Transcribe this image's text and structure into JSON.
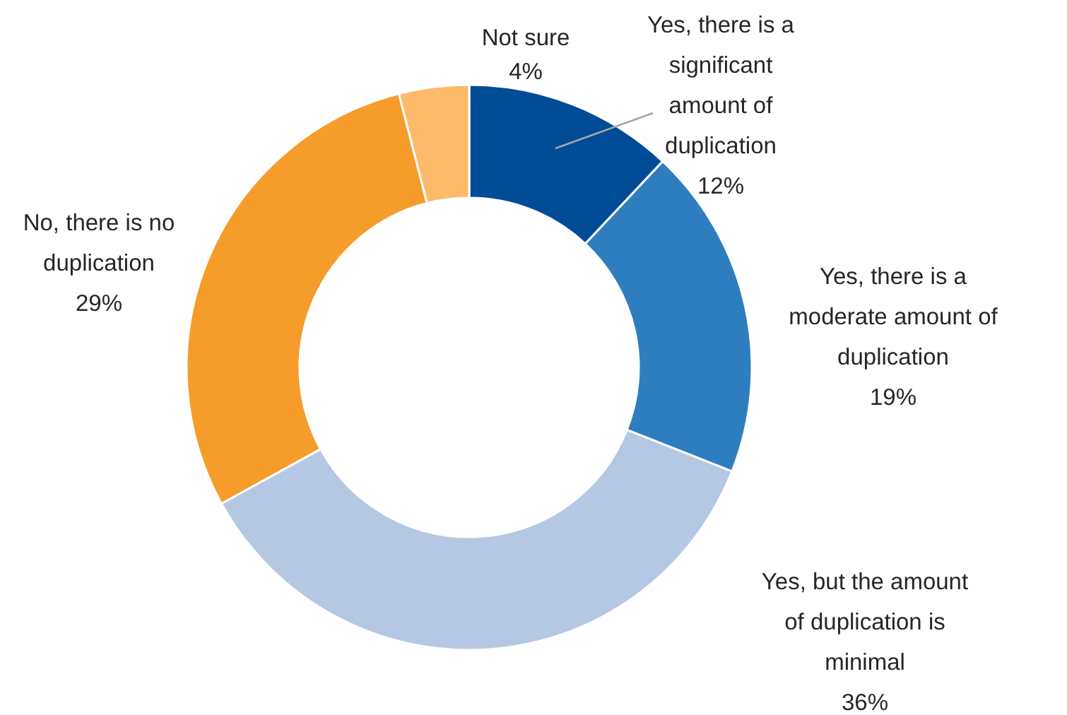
{
  "chart_data": {
    "type": "donut",
    "categories": [
      "Yes, there is a significant amount of duplication",
      "Yes, there is a moderate amount of duplication",
      "Yes, but the amount of duplication is minimal",
      "No, there is no duplication",
      "Not sure"
    ],
    "values": [
      12,
      19,
      36,
      29,
      4
    ],
    "value_labels": [
      "12%",
      "19%",
      "36%",
      "29%",
      "4%"
    ],
    "colors": [
      "#004c97",
      "#2e7ebf",
      "#b4c7e3",
      "#f59c2a",
      "#fdba6b"
    ]
  }
}
